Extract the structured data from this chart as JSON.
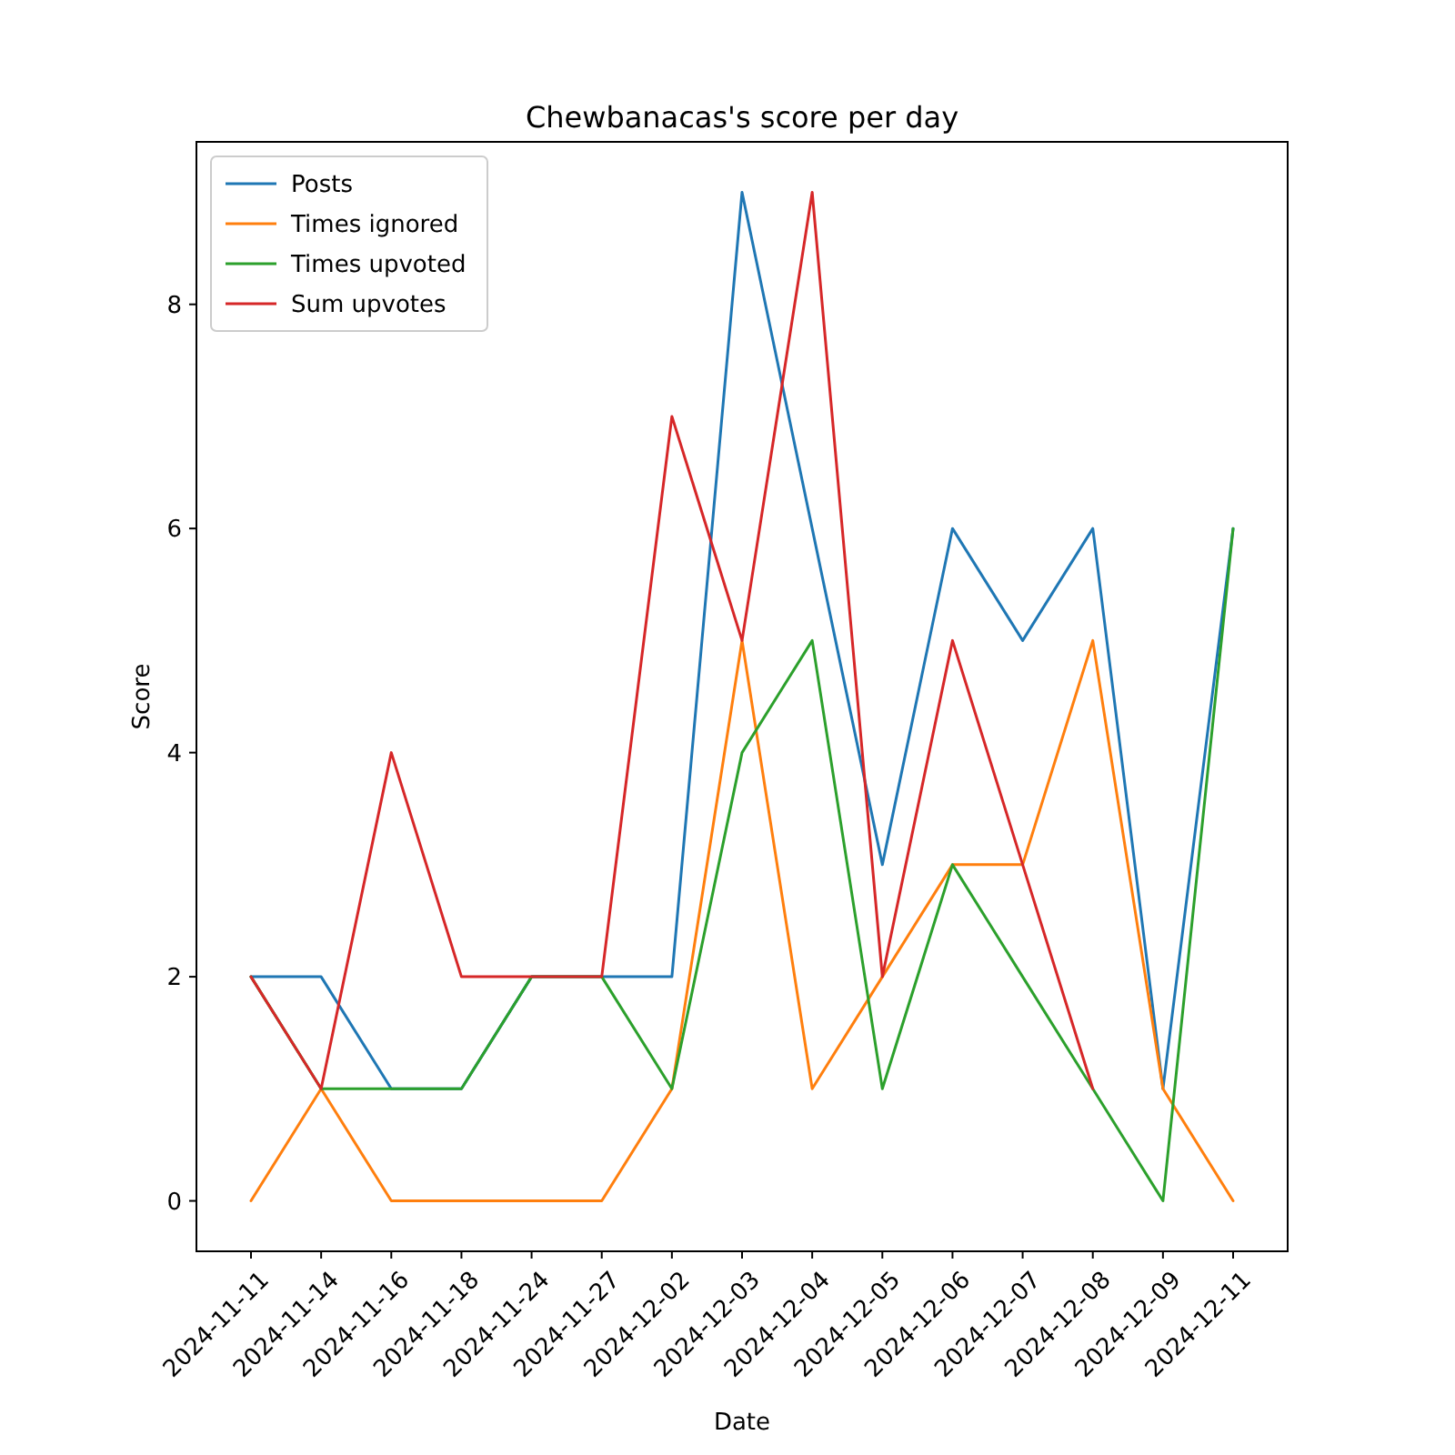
{
  "chart_data": {
    "type": "line",
    "title": "Chewbanacas's score per day",
    "xlabel": "Date",
    "ylabel": "Score",
    "categories": [
      "2024-11-11",
      "2024-11-14",
      "2024-11-16",
      "2024-11-18",
      "2024-11-24",
      "2024-11-27",
      "2024-12-02",
      "2024-12-03",
      "2024-12-04",
      "2024-12-05",
      "2024-12-06",
      "2024-12-07",
      "2024-12-08",
      "2024-12-09",
      "2024-12-11"
    ],
    "series": [
      {
        "name": "Posts",
        "color": "#1f77b4",
        "values": [
          2,
          2,
          1,
          1,
          2,
          2,
          2,
          9,
          6,
          3,
          6,
          5,
          6,
          1,
          6
        ]
      },
      {
        "name": "Times ignored",
        "color": "#ff7f0e",
        "values": [
          0,
          1,
          0,
          0,
          0,
          0,
          1,
          5,
          1,
          2,
          3,
          3,
          5,
          1,
          0
        ]
      },
      {
        "name": "Times upvoted",
        "color": "#2ca02c",
        "values": [
          2,
          1,
          1,
          1,
          2,
          2,
          1,
          4,
          5,
          1,
          3,
          2,
          1,
          0,
          6
        ]
      },
      {
        "name": "Sum upvotes",
        "color": "#d62728",
        "values": [
          2,
          1,
          4,
          2,
          2,
          2,
          7,
          5,
          9,
          2,
          5,
          3,
          1,
          null,
          null
        ]
      }
    ],
    "ylim": [
      -0.45,
      9.45
    ],
    "yticks": [
      0,
      2,
      4,
      6,
      8
    ],
    "grid": false,
    "legend": "top left",
    "line_style": "solid",
    "marker": "none"
  }
}
